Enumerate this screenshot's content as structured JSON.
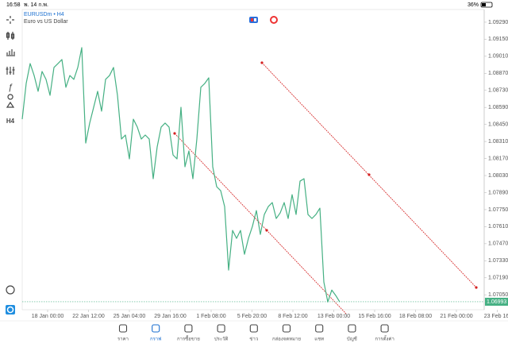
{
  "status_bar": {
    "time": "16:58",
    "date": "พ. 14 ก.พ.",
    "battery": "36%"
  },
  "chart_header": {
    "symbol": "EURUSDm • H4",
    "description": "Euro vs US Dollar"
  },
  "toolbar": {
    "timeframe": "H4"
  },
  "chart_data": {
    "type": "line",
    "color": "#45b083",
    "values": [
      1.08493,
      1.08787,
      1.0895,
      1.08852,
      1.08722,
      1.08885,
      1.0882,
      1.08689,
      1.08918,
      1.0895,
      1.08983,
      1.08755,
      1.08852,
      1.0882,
      1.08918,
      1.09081,
      1.08297,
      1.08461,
      1.08591,
      1.08722,
      1.08559,
      1.0882,
      1.08852,
      1.08918,
      1.08689,
      1.0833,
      1.08363,
      1.08167,
      1.08493,
      1.08428,
      1.0833,
      1.08363,
      1.0833,
      1.08004,
      1.08265,
      1.08428,
      1.08461,
      1.08428,
      1.08199,
      1.08167,
      1.08591,
      1.08102,
      1.08232,
      1.08004,
      1.0833,
      1.08755,
      1.08787,
      1.08833,
      1.08102,
      1.07938,
      1.07906,
      1.07775,
      1.07253,
      1.07579,
      1.07514,
      1.07579,
      1.07383,
      1.07514,
      1.07612,
      1.07742,
      1.07546,
      1.0771,
      1.07775,
      1.07808,
      1.07677,
      1.07723,
      1.07808,
      1.07677,
      1.07873,
      1.0771,
      1.07984,
      1.08004,
      1.0771,
      1.07677,
      1.0771,
      1.07762,
      1.07155,
      1.06991,
      1.07089,
      1.07044,
      1.06991
    ],
    "ylim": [
      1.06973,
      1.09394
    ],
    "yticks": [
      {
        "value": 1.0929,
        "label": "1.09290"
      },
      {
        "value": 1.0915,
        "label": "1.09150"
      },
      {
        "value": 1.0901,
        "label": "1.09010"
      },
      {
        "value": 1.0887,
        "label": "1.08870"
      },
      {
        "value": 1.0873,
        "label": "1.08730"
      },
      {
        "value": 1.0859,
        "label": "1.08590"
      },
      {
        "value": 1.0845,
        "label": "1.08450"
      },
      {
        "value": 1.0831,
        "label": "1.08310"
      },
      {
        "value": 1.0817,
        "label": "1.08170"
      },
      {
        "value": 1.0803,
        "label": "1.08030"
      },
      {
        "value": 1.0789,
        "label": "1.07890"
      },
      {
        "value": 1.0775,
        "label": "1.07750"
      },
      {
        "value": 1.0761,
        "label": "1.07610"
      },
      {
        "value": 1.0747,
        "label": "1.07470"
      },
      {
        "value": 1.0733,
        "label": "1.07330"
      },
      {
        "value": 1.0719,
        "label": "1.07190"
      },
      {
        "value": 1.0705,
        "label": "1.07050"
      }
    ],
    "xtick_labels": [
      "18 Jan 00:00",
      "22 Jan 12:00",
      "25 Jan 04:00",
      "29 Jan 16:00",
      "1 Feb 08:00",
      "5 Feb 20:00",
      "8 Feb 12:00",
      "13 Feb 00:00",
      "15 Feb 16:00",
      "18 Feb 08:00",
      "21 Feb 00:00",
      "23 Feb 16:"
    ],
    "current_price": {
      "value": 1.06993,
      "label": "1.06993"
    }
  },
  "tabs": [
    "ราคา",
    "กราฟ",
    "การซื้อขาย",
    "ประวัติ",
    "ข่าว",
    "กล่องจดหมาย",
    "แชท",
    "บัญชี",
    "การตั้งค่า"
  ]
}
